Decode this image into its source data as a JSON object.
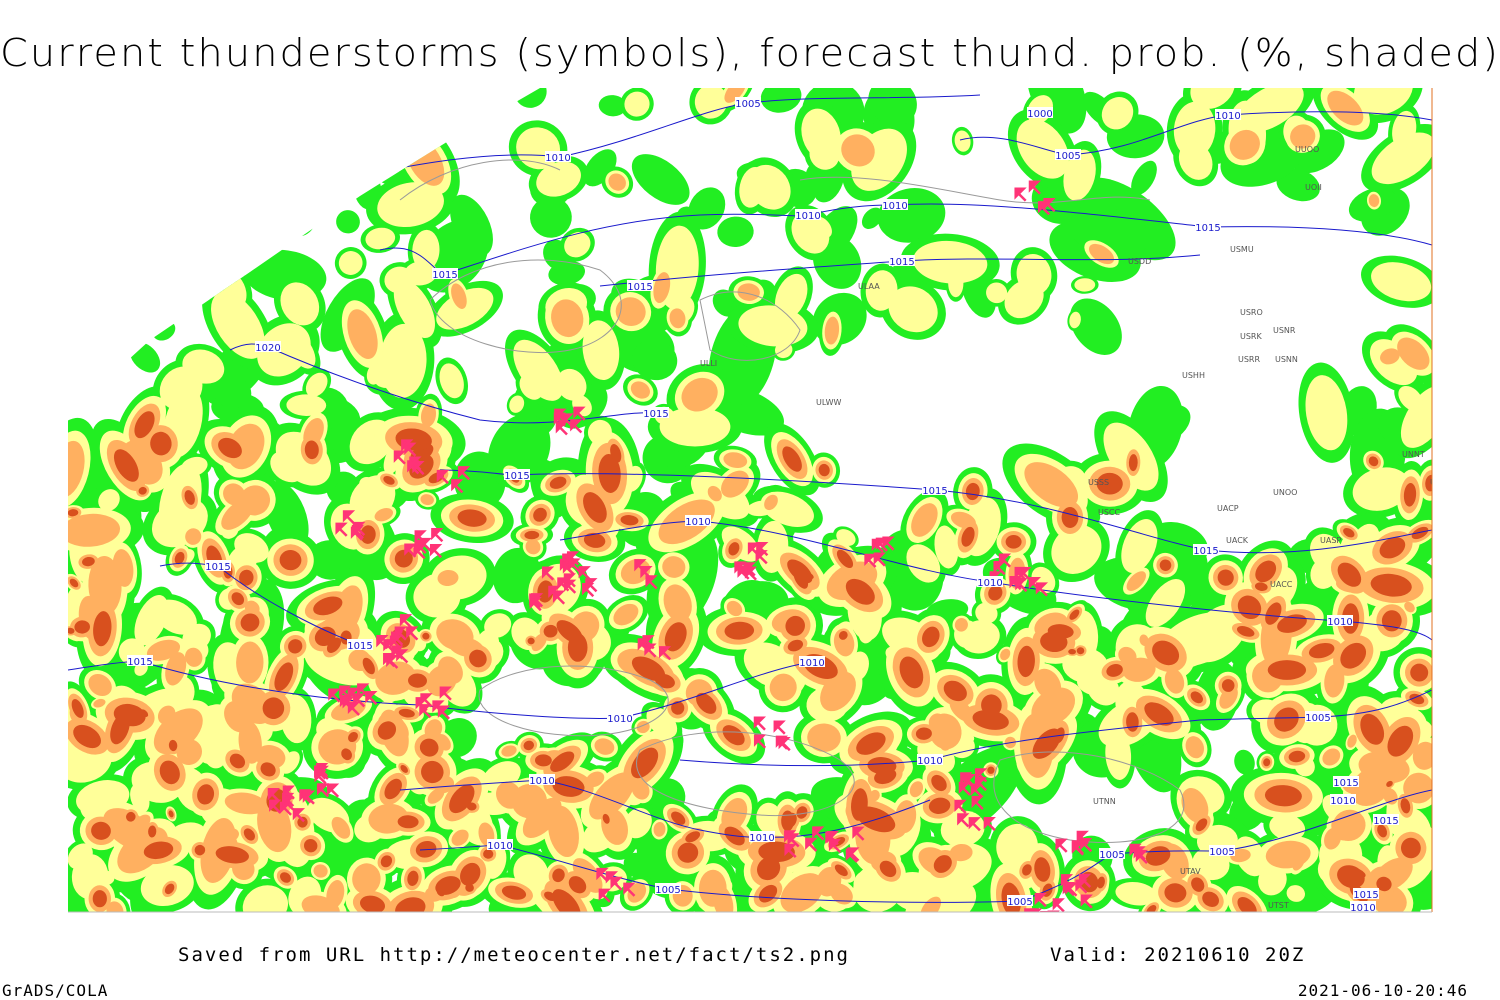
{
  "title": "Current thunderstorms (symbols), forecast thund. prob. (%, shaded)",
  "footer": {
    "source": "Saved from URL http://meteocenter.net/fact/ts2.png",
    "valid": "Valid: 20210610 20Z",
    "software": "GrADS/COLA",
    "timestamp": "2021-06-10-20:46"
  },
  "isobar_labels": [
    "1005",
    "1010",
    "1000",
    "1010",
    "1005",
    "1010",
    "1010",
    "1015",
    "1015",
    "1015",
    "1015",
    "1020",
    "1015",
    "1015",
    "1015",
    "1010",
    "1015",
    "1015",
    "1010",
    "1015",
    "1015",
    "1010",
    "1010",
    "1010",
    "1005",
    "1010",
    "1010",
    "1015",
    "1010",
    "1010",
    "1010",
    "1015",
    "1005",
    "1005",
    "1005",
    "1005",
    "1015",
    "1010"
  ],
  "station_labels": [
    "UUOO",
    "UOII",
    "USDD",
    "USMU",
    "ULAA",
    "USRO",
    "USRK",
    "USNR",
    "USRR",
    "USNN",
    "USHH",
    "ULWW",
    "ULLI",
    "UNNT",
    "UNBB",
    "USSS",
    "UNOO",
    "USCC",
    "UACP",
    "UACK",
    "UASP",
    "UACC",
    "UTNN",
    "UTAV",
    "UTST"
  ]
}
